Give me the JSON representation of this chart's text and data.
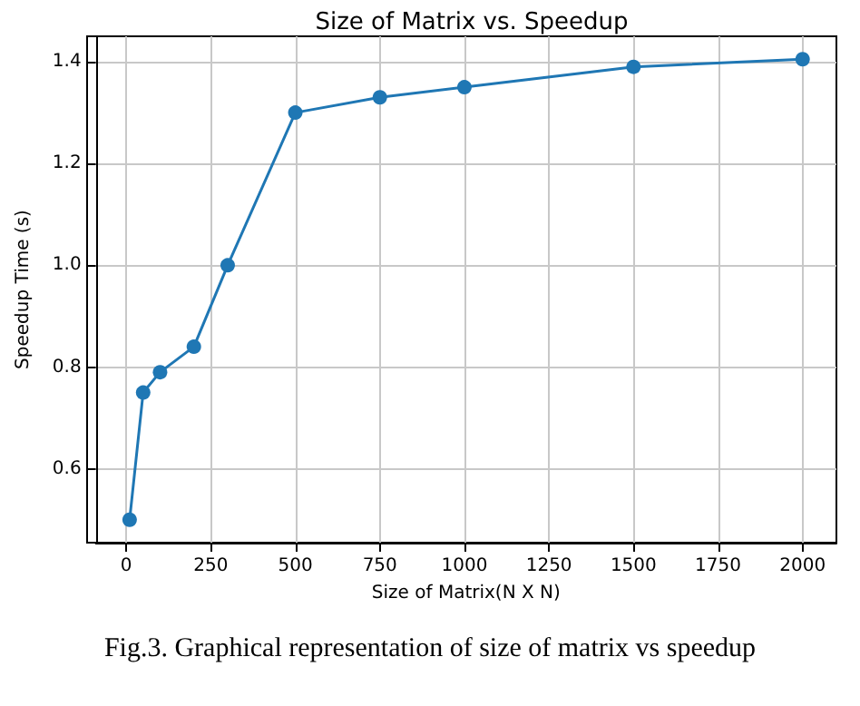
{
  "chart_data": {
    "type": "line",
    "title": "Size of Matrix vs. Speedup",
    "xlabel": "Size of Matrix(N X N)",
    "ylabel": "Speedup Time (s)",
    "x": [
      10,
      50,
      100,
      200,
      300,
      500,
      750,
      1000,
      1500,
      2000
    ],
    "series": [
      {
        "color": "#1f77b4",
        "values": [
          0.5,
          0.75,
          0.79,
          0.84,
          1.0,
          1.3,
          1.33,
          1.35,
          1.39,
          1.405
        ]
      }
    ],
    "xlim": [
      -90,
      2100
    ],
    "xticks": [
      0,
      250,
      500,
      750,
      1000,
      1250,
      1500,
      1750,
      2000
    ],
    "ylim": [
      0.455,
      1.45
    ],
    "yticks": [
      0.6,
      0.8,
      {
        "value": 1,
        "label": "1.0"
      },
      1.2,
      1.4
    ],
    "grid": true,
    "marker": "circle",
    "line_style": "solid",
    "annotations": [
      "Fig.3. Graphical representation of size of matrix vs speedup"
    ]
  }
}
